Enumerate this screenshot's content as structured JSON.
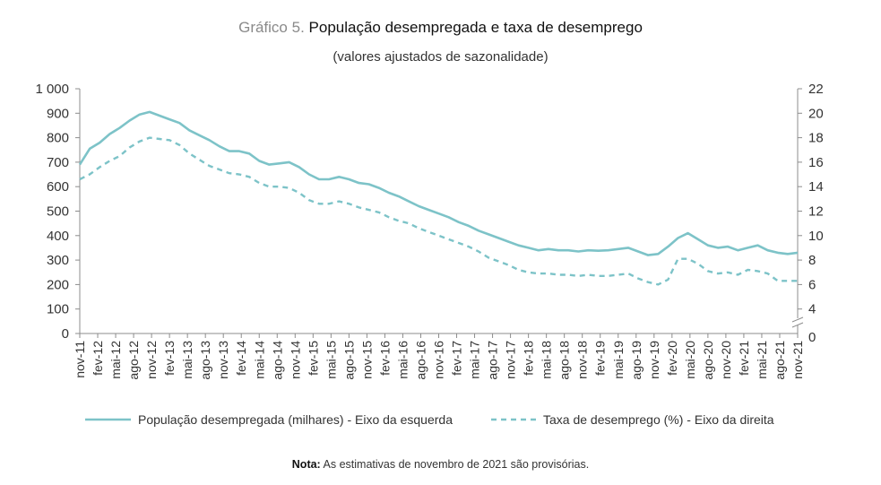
{
  "title": {
    "prefix": "Gráfico 5.",
    "main": "População desempregada e taxa de desemprego",
    "subtitle": "(valores ajustados de sazonalidade)"
  },
  "note": {
    "label": "Nota:",
    "text": "As estimativas de novembro de 2021 são provisórias."
  },
  "colors": {
    "series": "#7dc3c8",
    "axis": "#8c8c8c",
    "text": "#333333"
  },
  "chart_data": {
    "type": "line",
    "title": "População desempregada e taxa de desemprego",
    "subtitle": "(valores ajustados de sazonalidade)",
    "x_start": "nov-11",
    "x_end": "nov-21",
    "x_tick_labels": [
      "nov-11",
      "fev-12",
      "mai-12",
      "ago-12",
      "nov-12",
      "fev-13",
      "mai-13",
      "ago-13",
      "nov-13",
      "fev-14",
      "mai-14",
      "ago-14",
      "nov-14",
      "fev-15",
      "mai-15",
      "ago-15",
      "nov-15",
      "fev-16",
      "mai-16",
      "ago-16",
      "nov-16",
      "fev-17",
      "mai-17",
      "ago-17",
      "nov-17",
      "fev-18",
      "mai-18",
      "ago-18",
      "nov-18",
      "fev-19",
      "mai-19",
      "ago-19",
      "nov-19",
      "fev-20",
      "mai-20",
      "ago-20",
      "nov-20",
      "fev-21",
      "mai-21",
      "ago-21",
      "nov-21"
    ],
    "y_left": {
      "ticks": [
        "0",
        "100",
        "200",
        "300",
        "400",
        "500",
        "600",
        "700",
        "800",
        "900",
        "1 000"
      ],
      "ylim": [
        0,
        1000
      ]
    },
    "y_right": {
      "ticks": [
        "0",
        "4",
        "6",
        "8",
        "10",
        "12",
        "14",
        "16",
        "18",
        "20",
        "22"
      ],
      "axis_break": true,
      "ylim": [
        2,
        22
      ]
    },
    "legend": "bottom",
    "grid": false,
    "series": [
      {
        "name": "População desempregada (milhares) - Eixo da esquerda",
        "axis": "left",
        "style": "solid",
        "values": [
          690,
          755,
          780,
          815,
          840,
          870,
          895,
          905,
          890,
          875,
          860,
          830,
          810,
          790,
          765,
          745,
          745,
          735,
          705,
          690,
          695,
          700,
          680,
          650,
          630,
          630,
          640,
          630,
          615,
          610,
          595,
          575,
          560,
          540,
          520,
          505,
          490,
          475,
          455,
          440,
          420,
          405,
          390,
          375,
          360,
          350,
          340,
          345,
          340,
          340,
          335,
          340,
          338,
          340,
          345,
          350,
          335,
          320,
          325,
          355,
          390,
          410,
          385,
          360,
          350,
          355,
          340,
          350,
          360,
          340,
          330,
          325,
          330
        ]
      },
      {
        "name": "Taxa de desemprego (%) - Eixo da direita",
        "axis": "right",
        "style": "dashed",
        "values": [
          14.6,
          15.0,
          15.6,
          16.1,
          16.5,
          17.2,
          17.7,
          18.0,
          17.9,
          17.8,
          17.4,
          16.7,
          16.2,
          15.7,
          15.4,
          15.1,
          15.0,
          14.8,
          14.3,
          14.0,
          14.0,
          13.9,
          13.5,
          12.9,
          12.6,
          12.6,
          12.8,
          12.6,
          12.3,
          12.1,
          11.9,
          11.5,
          11.2,
          11.0,
          10.6,
          10.3,
          10.0,
          9.7,
          9.4,
          9.1,
          8.7,
          8.2,
          7.9,
          7.6,
          7.2,
          7.0,
          6.9,
          6.9,
          6.8,
          6.8,
          6.7,
          6.8,
          6.7,
          6.7,
          6.8,
          6.9,
          6.5,
          6.2,
          6.0,
          6.4,
          8.1,
          8.1,
          7.7,
          7.1,
          6.9,
          7.0,
          6.8,
          7.2,
          7.1,
          6.9,
          6.3,
          6.3,
          6.3
        ]
      }
    ]
  }
}
